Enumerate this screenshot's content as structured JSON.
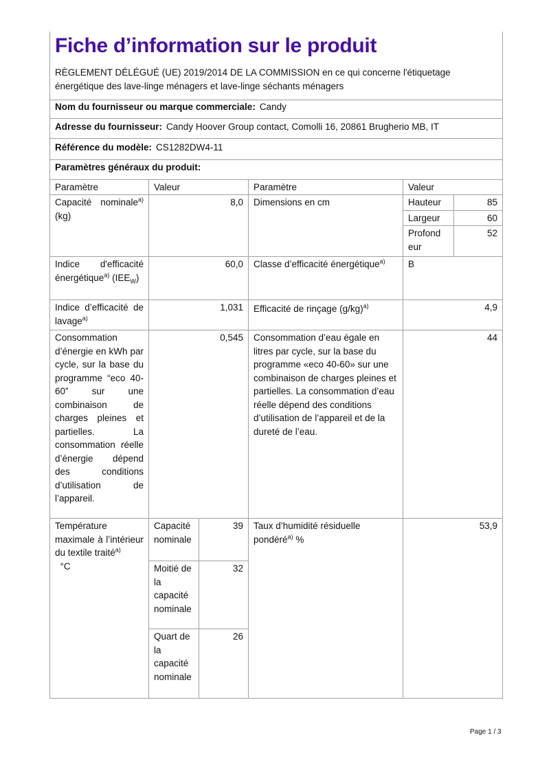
{
  "title": "Fiche d’information sur le produit",
  "regulation": "RÈGLEMENT DÉLÉGUÉ (UE) 2019/2014 DE LA COMMISSION en ce qui concerne l'étiquetage énergétique des lave-linge ménagers et lave-linge séchants ménagers",
  "supplier": {
    "label": "Nom du fournisseur ou marque commerciale:",
    "value": "Candy"
  },
  "address": {
    "label": "Adresse du fournisseur:",
    "value": "Candy Hoover Group contact, Comolli 16, 20861 Brugherio MB, IT"
  },
  "model": {
    "label": "Référence du modèle:",
    "value": "CS1282DW4-11"
  },
  "general_params": "Paramètres généraux du produit:",
  "table": {
    "headers": [
      "Paramètre",
      "Valeur",
      "Paramètre",
      "Valeur"
    ],
    "sup": "a)",
    "capacity": {
      "label": "Capacité nominale",
      "unit": "(kg)",
      "value": "8,0"
    },
    "dimensions": {
      "label": "Dimensions en cm",
      "rows": [
        {
          "name": "Hauteur",
          "value": "85"
        },
        {
          "name": "Largeur",
          "value": "60"
        },
        {
          "name": "Profondeur",
          "value": "52"
        }
      ]
    },
    "eei": {
      "label": "Indice d'efficacité énergétique",
      "sub_pre": "(IEE",
      "sub": "W",
      "sub_post": ")",
      "value": "60,0"
    },
    "energy_class": {
      "label": "Classe d’efficacité énergétique",
      "value": "B"
    },
    "washing": {
      "label": "Indice d’efficacité de lavage",
      "value": "1,031"
    },
    "rinsing": {
      "label": "Efficacité de rinçage (g/kg)",
      "value": "4,9"
    },
    "energy": {
      "label": "Consommation d’énergie en kWh par cycle, sur la base du programme “eco 40-60” sur une combinaison de charges pleines et partielles. La consommation réelle d’énergie dépend des conditions d’utilisation de l’appareil.",
      "value": "0,545"
    },
    "water": {
      "label": "Consommation d’eau égale en litres par cycle, sur la base du programme «eco 40-60» sur une combinaison de charges pleines et partielles. La consommation d’eau réelle dépend des conditions d’utilisation de l’appareil et de la dureté de l’eau.",
      "value": "44"
    },
    "temperature": {
      "label": "Température maximale à l’intérieur du textile traité",
      "unit": "°C",
      "rows": [
        {
          "name": "Capacité nominale",
          "value": "39"
        },
        {
          "name": "Moitié de la capacité nominale",
          "value": "32"
        },
        {
          "name": "Quart de la capacité nominale",
          "value": "26"
        }
      ]
    },
    "humidity": {
      "label": "Taux d’humidité résiduelle pondéré",
      "unit": "%",
      "value": "53,9"
    }
  },
  "footer": "Page 1 / 3"
}
